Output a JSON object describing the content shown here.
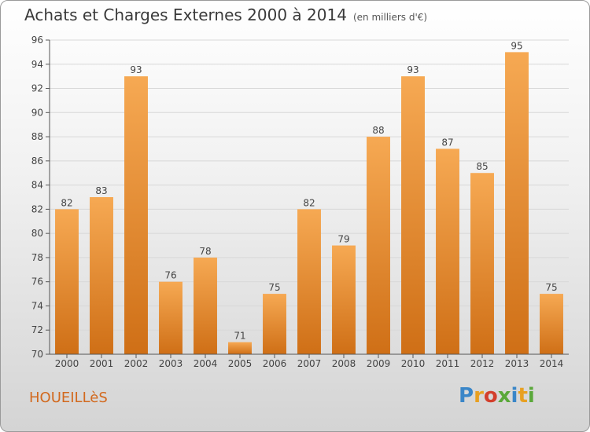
{
  "title": "Achats et Charges Externes 2000 à 2014",
  "subtitle": "(en milliers d'€)",
  "commune": "HOUEILLèS",
  "brand": {
    "letters": [
      "P",
      "r",
      "o",
      "x",
      "i",
      "t",
      "i"
    ],
    "colors": [
      "#3a86c8",
      "#e8a021",
      "#d33f2c",
      "#5aa83a",
      "#3a86c8",
      "#e8a021",
      "#5aa83a"
    ]
  },
  "chart_data": {
    "type": "bar",
    "title": "Achats et Charges Externes 2000 à 2014",
    "xlabel": "",
    "ylabel": "",
    "categories": [
      "2000",
      "2001",
      "2002",
      "2003",
      "2004",
      "2005",
      "2006",
      "2007",
      "2008",
      "2009",
      "2010",
      "2011",
      "2012",
      "2013",
      "2014"
    ],
    "values": [
      82,
      83,
      93,
      76,
      78,
      71,
      75,
      82,
      79,
      88,
      93,
      87,
      85,
      95,
      75
    ],
    "ylim": [
      70,
      96
    ],
    "yticks": [
      70,
      72,
      74,
      76,
      78,
      80,
      82,
      84,
      86,
      88,
      90,
      92,
      94,
      96
    ],
    "grid": true,
    "bar_color_top": "#f6a953",
    "bar_color_bottom": "#cf6f16"
  }
}
